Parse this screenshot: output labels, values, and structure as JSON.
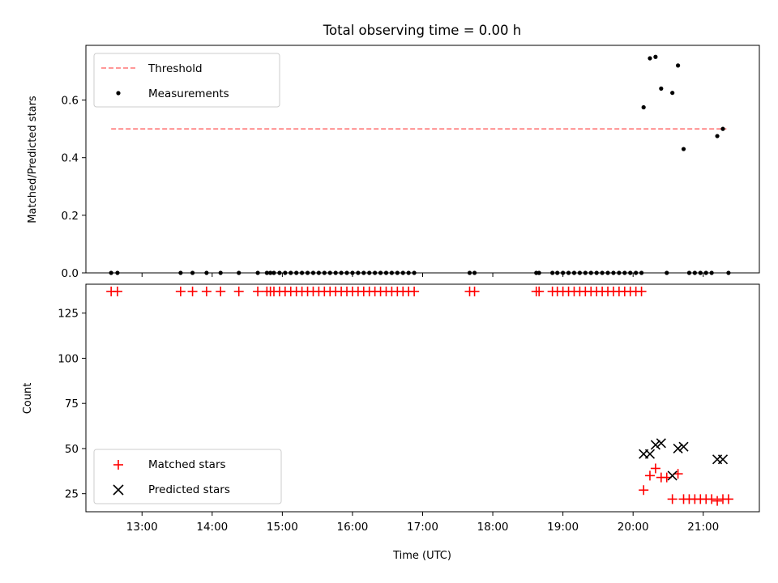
{
  "chart_data": [
    {
      "type": "scatter",
      "title": "Total observing time = 0.00 h",
      "xlabel": "",
      "ylabel": "Matched/Predicted stars",
      "x_unit": "hours UTC",
      "xlim": [
        12.2,
        21.8
      ],
      "ylim": [
        0,
        0.79
      ],
      "yticks": [
        0.0,
        0.2,
        0.4,
        0.6
      ],
      "ytick_labels": [
        "0.0",
        "0.2",
        "0.4",
        "0.6"
      ],
      "grid": false,
      "legend": "top-left",
      "threshold": {
        "name": "Threshold",
        "y": 0.5,
        "x": [
          12.56,
          21.33
        ],
        "color": "#ff7777"
      },
      "series": [
        {
          "name": "Measurements",
          "color": "#000000",
          "marker": "dot",
          "x": [
            12.56,
            12.65,
            13.55,
            13.72,
            13.92,
            14.12,
            14.38,
            14.65,
            14.78,
            14.83,
            14.88,
            14.96,
            15.04,
            15.12,
            15.2,
            15.28,
            15.36,
            15.44,
            15.52,
            15.6,
            15.68,
            15.76,
            15.84,
            15.92,
            16.0,
            16.08,
            16.16,
            16.24,
            16.32,
            16.4,
            16.48,
            16.56,
            16.64,
            16.72,
            16.8,
            16.88,
            17.67,
            17.74,
            18.62,
            18.66,
            18.85,
            18.92,
            19.0,
            19.08,
            19.16,
            19.24,
            19.32,
            19.4,
            19.48,
            19.56,
            19.64,
            19.72,
            19.8,
            19.88,
            19.96,
            20.04,
            20.12,
            20.15,
            20.24,
            20.32,
            20.4,
            20.48,
            20.56,
            20.64,
            20.72,
            20.8,
            20.88,
            20.96,
            21.04,
            21.12,
            21.2,
            21.28,
            21.36
          ],
          "y": [
            0,
            0,
            0,
            0,
            0,
            0,
            0,
            0,
            0,
            0,
            0,
            0,
            0,
            0,
            0,
            0,
            0,
            0,
            0,
            0,
            0,
            0,
            0,
            0,
            0,
            0,
            0,
            0,
            0,
            0,
            0,
            0,
            0,
            0,
            0,
            0,
            0,
            0,
            0,
            0,
            0,
            0,
            0,
            0,
            0,
            0,
            0,
            0,
            0,
            0,
            0,
            0,
            0,
            0,
            0,
            0,
            0,
            0.575,
            0.745,
            0.75,
            0.64,
            0,
            0.625,
            0.72,
            0.43,
            0,
            0,
            0,
            0,
            0,
            0.475,
            0.5,
            0
          ]
        }
      ]
    },
    {
      "type": "scatter",
      "title": "",
      "xlabel": "Time (UTC)",
      "ylabel": "Count",
      "x_unit": "hours UTC",
      "xlim": [
        12.2,
        21.8
      ],
      "ylim": [
        15,
        141
      ],
      "yticks": [
        25,
        50,
        75,
        100,
        125
      ],
      "xticks": [
        13,
        14,
        15,
        16,
        17,
        18,
        19,
        20,
        21
      ],
      "xtick_labels": [
        "13:00",
        "14:00",
        "15:00",
        "16:00",
        "17:00",
        "18:00",
        "19:00",
        "20:00",
        "21:00"
      ],
      "grid": false,
      "legend": "bottom-left",
      "series": [
        {
          "name": "Matched stars",
          "color": "#ff0000",
          "marker": "plus",
          "x": [
            12.56,
            12.65,
            13.55,
            13.72,
            13.92,
            14.12,
            14.38,
            14.65,
            14.78,
            14.83,
            14.88,
            14.96,
            15.04,
            15.12,
            15.2,
            15.28,
            15.36,
            15.44,
            15.52,
            15.6,
            15.68,
            15.76,
            15.84,
            15.92,
            16.0,
            16.08,
            16.16,
            16.24,
            16.32,
            16.4,
            16.48,
            16.56,
            16.64,
            16.72,
            16.8,
            16.88,
            17.67,
            17.74,
            18.62,
            18.66,
            18.85,
            18.92,
            19.0,
            19.08,
            19.16,
            19.24,
            19.32,
            19.4,
            19.48,
            19.56,
            19.64,
            19.72,
            19.8,
            19.88,
            19.96,
            20.04,
            20.12,
            20.15,
            20.24,
            20.32,
            20.4,
            20.48,
            20.56,
            20.64,
            20.72,
            20.8,
            20.88,
            20.96,
            21.04,
            21.12,
            21.2,
            21.28,
            21.36
          ],
          "y": [
            137,
            137,
            137,
            137,
            137,
            137,
            137,
            137,
            137,
            137,
            137,
            137,
            137,
            137,
            137,
            137,
            137,
            137,
            137,
            137,
            137,
            137,
            137,
            137,
            137,
            137,
            137,
            137,
            137,
            137,
            137,
            137,
            137,
            137,
            137,
            137,
            137,
            137,
            137,
            137,
            137,
            137,
            137,
            137,
            137,
            137,
            137,
            137,
            137,
            137,
            137,
            137,
            137,
            137,
            137,
            137,
            137,
            27,
            35,
            39,
            34,
            34,
            22,
            36,
            22,
            22,
            22,
            22,
            22,
            22,
            21,
            22,
            22
          ]
        },
        {
          "name": "Predicted stars",
          "color": "#000000",
          "marker": "x",
          "x": [
            20.15,
            20.24,
            20.32,
            20.4,
            20.56,
            20.64,
            20.72,
            21.2,
            21.28
          ],
          "y": [
            47,
            47,
            52,
            53,
            35,
            50,
            51,
            44,
            44
          ]
        }
      ]
    }
  ]
}
